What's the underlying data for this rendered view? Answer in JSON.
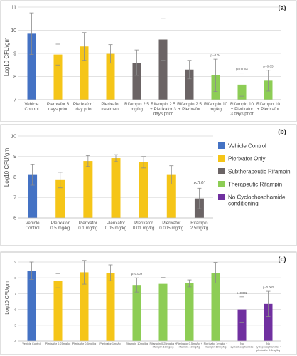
{
  "chart_data": [
    {
      "type": "bar",
      "panel_label": "(a)",
      "ylabel": "Log10 CFU/gm",
      "ylim": [
        7,
        11
      ],
      "yticks": [
        7,
        8,
        9,
        10,
        11
      ],
      "grid": true,
      "categories": [
        "Vehicle Control",
        "Plerixafor 3 days prior",
        "Plerixafor 1 day prior",
        "Plerixafor treatment",
        "Rifampin 2.5 mg/kg",
        "Rifampin 2.5 + Plerixafor 3 days prior",
        "Rifampin 2.5 + Plerixafor",
        "Rifampin 10 mg/kg",
        "Rifampin 10 + Plerixafor 3 days prior",
        "Rifampin 10 + Plerixafor"
      ],
      "category_lines": [
        [
          "Vehicle",
          "Control"
        ],
        [
          "Plerixafor 3",
          "days prior"
        ],
        [
          "Plerixafor 1",
          "day prior"
        ],
        [
          "Plerixafor",
          "treatment"
        ],
        [
          "Rifampin 2.5",
          "mg/kg"
        ],
        [
          "Rifampin 2.5",
          "+ Plerixafor 3",
          "days prior"
        ],
        [
          "Rifampin 2.5",
          "+ Plerixafor"
        ],
        [
          "Rifampin 10",
          "mg/kg"
        ],
        [
          "Rifampin 10",
          "+ Plerixafor",
          "3 days prior"
        ],
        [
          "Rifampin 10",
          "+ Plerixafor"
        ]
      ],
      "values": [
        9.85,
        8.95,
        9.3,
        8.98,
        8.6,
        9.6,
        8.3,
        8.05,
        7.65,
        7.82
      ],
      "error": [
        0.9,
        0.45,
        0.6,
        0.4,
        0.55,
        0.9,
        0.4,
        0.7,
        0.5,
        0.45
      ],
      "groups": [
        "vehicle",
        "plerixafor",
        "plerixafor",
        "plerixafor",
        "sub",
        "sub",
        "sub",
        "ther",
        "ther",
        "ther"
      ],
      "annotations": [
        {
          "bar": 7,
          "text": "p=0.04"
        },
        {
          "bar": 8,
          "text": "p=0.004"
        },
        {
          "bar": 9,
          "text": "p=0.05"
        }
      ]
    },
    {
      "type": "bar",
      "panel_label": "(b)",
      "ylabel": "Log10 CFU/gm",
      "ylim": [
        6,
        10
      ],
      "yticks": [
        6,
        7,
        8,
        9,
        10
      ],
      "grid": true,
      "categories": [
        "Vehicle Control",
        "Plerixafor 0.5 mg/kg",
        "Plerixafor 0.1 mg/kg",
        "Plerixafor 0.05 mg/kg",
        "Plerixafor 0.01 mg/kg",
        "Plerixafor 0.005 mg/kg",
        "Rifampin 2.5mg/kg"
      ],
      "category_lines": [
        [
          "Vehicle",
          "Control"
        ],
        [
          "Plerixafor",
          "0.5 mg/kg"
        ],
        [
          "Plerixafor",
          "0.1 mg/kg"
        ],
        [
          "Plerixafor",
          "0.05 mg/kg"
        ],
        [
          "Plerixafor",
          "0.01 mg/kg"
        ],
        [
          "Plerixafor",
          "0.005 mg/kg"
        ],
        [
          "Rifampin",
          "2.5mg/kg"
        ]
      ],
      "values": [
        8.1,
        7.85,
        8.78,
        8.92,
        8.72,
        8.1,
        6.95
      ],
      "error": [
        0.5,
        0.38,
        0.27,
        0.17,
        0.28,
        0.45,
        0.5
      ],
      "groups": [
        "vehicle",
        "plerixafor",
        "plerixafor",
        "plerixafor",
        "plerixafor",
        "plerixafor",
        "sub"
      ],
      "annotations": [
        {
          "bar": 6,
          "text": "p<0.01"
        }
      ],
      "legend": {
        "position": "right",
        "entries": [
          {
            "label": "Vehicle Control",
            "group": "vehicle"
          },
          {
            "label": "Plerixafor Only",
            "group": "plerixafor"
          },
          {
            "label": "Subtherapeutic Rifampin",
            "group": "sub"
          },
          {
            "label": "Therapeutic Rifampin",
            "group": "ther"
          },
          {
            "label": "No Cyclophosphamide conditioning",
            "group": "nocyclo",
            "lines": [
              "No Cyclophosphamide",
              "conditioning"
            ]
          }
        ]
      }
    },
    {
      "type": "bar",
      "panel_label": "(c)",
      "ylabel": "Log10 CFU/gm",
      "ylim": [
        4,
        9
      ],
      "yticks": [
        4,
        5,
        6,
        7,
        8,
        9
      ],
      "grid": true,
      "categories": [
        "Vehicle Control",
        "Plerixafor 0.25mg/kg",
        "Plerixafor 0.5mg/kg",
        "Plerixafor 1mg/kg",
        "Rifampin 10mg/kg",
        "Rifampin 0.25mg/kg + rifampin 10mg/kg",
        "Plerixafor 0.5mg/kg + rifampin 10mg/kg",
        "Plerixafor 1mg/kg + rifampin 10mg/kg",
        "No cyclophosphamide",
        "No cyclophosphamide + plerixafor 0.5mg/kg"
      ],
      "category_lines": [
        [
          "Vehicle Control"
        ],
        [
          "Plerixafor 0.25mg/kg"
        ],
        [
          "Plerixafor 0.5mg/kg"
        ],
        [
          "Plerixafor 1mg/kg"
        ],
        [
          "Rifampin 10mg/kg"
        ],
        [
          "Rifampin 0.25mg/kg +",
          "rifampin 10mg/kg"
        ],
        [
          "Plerixafor 0.5mg/kg +",
          "rifampin 10mg/kg"
        ],
        [
          "Plerixafor 1mg/kg +",
          "rifampin 10mg/kg"
        ],
        [
          "No",
          "cyclophosphamide"
        ],
        [
          "No",
          "cyclophosphamide +",
          "plerixafor 0.5mg/kg"
        ]
      ],
      "values": [
        8.45,
        7.82,
        8.35,
        8.32,
        7.55,
        7.62,
        7.65,
        8.32,
        6.0,
        6.35
      ],
      "error": [
        0.55,
        0.45,
        0.75,
        0.5,
        0.45,
        0.4,
        0.22,
        0.65,
        0.8,
        0.8
      ],
      "groups": [
        "vehicle",
        "plerixafor",
        "plerixafor",
        "plerixafor",
        "ther",
        "ther",
        "ther",
        "ther",
        "nocyclo",
        "nocyclo"
      ],
      "annotations": [
        {
          "bar": 4,
          "text": "p=0.009"
        },
        {
          "bar": 8,
          "text": "p=0.002"
        },
        {
          "bar": 9,
          "text": "p=0.002"
        }
      ]
    }
  ],
  "colors": {
    "vehicle": "#4472c4",
    "plerixafor": "#f5c518",
    "sub": "#6b6465",
    "ther": "#8dcd55",
    "nocyclo": "#7030a0",
    "grid": "#d9d9d9",
    "axis_text": "#595959",
    "error_bar": "#8c8c8c",
    "panel_border": "#c0c0c0"
  }
}
